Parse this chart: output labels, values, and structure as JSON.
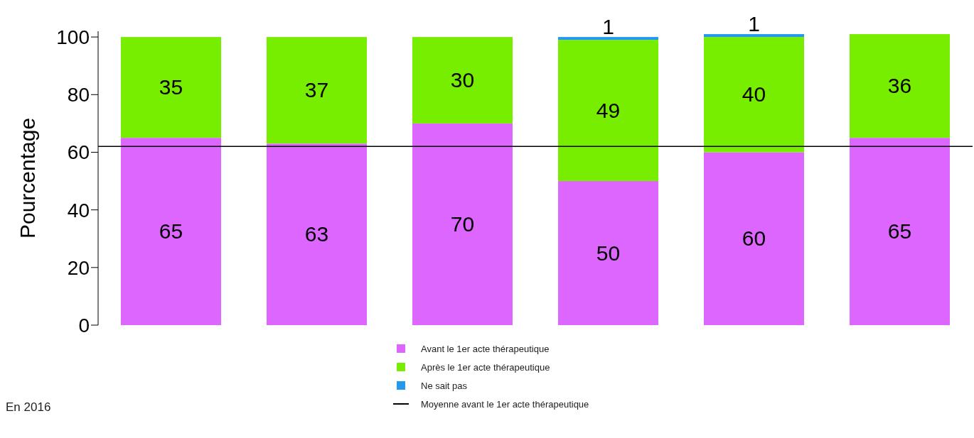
{
  "chart_data": {
    "type": "bar",
    "stacked": true,
    "ylabel": "Pourcentage",
    "categories": [
      null,
      null,
      null,
      null,
      null,
      null
    ],
    "series": [
      {
        "name": "Avant le 1er acte thérapeutique",
        "color": "#dd66ff",
        "values": [
          65,
          63,
          70,
          50,
          60,
          65
        ],
        "value_labels": [
          "65",
          "63",
          "70",
          "50",
          "60",
          "65"
        ]
      },
      {
        "name": "Après le 1er acte thérapeutique",
        "color": "#77ee00",
        "values": [
          35,
          37,
          30,
          49,
          40,
          36
        ],
        "value_labels": [
          "35",
          "37",
          "30",
          "49",
          "40",
          "36"
        ]
      },
      {
        "name": "Ne sait pas",
        "color": "#2299ee",
        "values": [
          null,
          null,
          null,
          1,
          1,
          null
        ],
        "value_labels": [
          null,
          null,
          null,
          "1",
          "1",
          null
        ]
      }
    ],
    "ylim": [
      0,
      102
    ],
    "yticks": [
      0,
      20,
      40,
      60,
      80,
      100
    ],
    "grid": false,
    "legend": "bottom",
    "ref_lines": [
      {
        "axis": "y",
        "value": 62,
        "label": "Moyenne avant le 1er acte thérapeutique",
        "color": "#000000"
      }
    ],
    "annotations": [
      "En 2016"
    ]
  }
}
